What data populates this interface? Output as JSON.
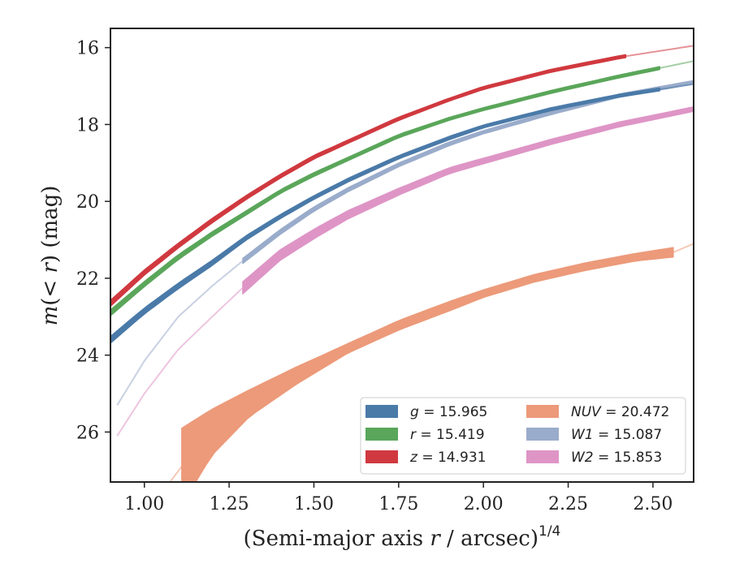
{
  "chart_data": {
    "type": "line",
    "xlabel": "(Semi-major axis r / arcsec)^{1/4}",
    "ylabel": "m(< r) (mag)",
    "xlim": [
      0.9,
      2.62
    ],
    "ylim": [
      27.3,
      15.5
    ],
    "y_inverted": true,
    "xticks": [
      "1.00",
      "1.25",
      "1.50",
      "1.75",
      "2.00",
      "2.25",
      "2.50"
    ],
    "yticks": [
      "16",
      "18",
      "20",
      "22",
      "24",
      "26"
    ],
    "grid": false,
    "legend_position": "lower-right",
    "legend": [
      {
        "label": "g = 15.965",
        "color": "#4a7aa8"
      },
      {
        "label": "NUV = 20.472",
        "color": "#ec9a7a"
      },
      {
        "label": "r = 15.419",
        "color": "#5aa65a"
      },
      {
        "label": "W1 = 15.087",
        "color": "#9aaccb"
      },
      {
        "label": "z = 14.931",
        "color": "#d0393f"
      },
      {
        "label": "W2 = 15.853",
        "color": "#de95c6"
      }
    ],
    "series": [
      {
        "name": "g = 15.965",
        "color": "#4a7aa8",
        "x": [
          0.9,
          1.0,
          1.1,
          1.2,
          1.3,
          1.4,
          1.5,
          1.6,
          1.75,
          1.9,
          2.0,
          2.2,
          2.4,
          2.62
        ],
        "y": [
          23.6,
          22.85,
          22.2,
          21.6,
          20.95,
          20.4,
          19.9,
          19.45,
          18.85,
          18.35,
          18.05,
          17.6,
          17.25,
          16.95
        ],
        "width": [
          0.18,
          0.16,
          0.15,
          0.14,
          0.12,
          0.11,
          0.1,
          0.1,
          0.09,
          0.09,
          0.08,
          0.08,
          0.08,
          0.08
        ],
        "solid_range": [
          0.9,
          2.52
        ]
      },
      {
        "name": "r = 15.419",
        "color": "#5aa65a",
        "x": [
          0.9,
          1.0,
          1.1,
          1.2,
          1.3,
          1.4,
          1.5,
          1.6,
          1.75,
          1.9,
          2.0,
          2.2,
          2.4,
          2.62
        ],
        "y": [
          22.9,
          22.15,
          21.45,
          20.85,
          20.3,
          19.75,
          19.3,
          18.9,
          18.3,
          17.85,
          17.6,
          17.15,
          16.75,
          16.35
        ],
        "width": [
          0.16,
          0.14,
          0.13,
          0.12,
          0.11,
          0.1,
          0.1,
          0.09,
          0.09,
          0.08,
          0.08,
          0.08,
          0.08,
          0.08
        ],
        "solid_range": [
          0.9,
          2.52
        ]
      },
      {
        "name": "z = 14.931",
        "color": "#d0393f",
        "x": [
          0.9,
          1.0,
          1.1,
          1.2,
          1.3,
          1.4,
          1.5,
          1.6,
          1.75,
          1.9,
          2.0,
          2.2,
          2.4,
          2.62
        ],
        "y": [
          22.65,
          21.85,
          21.15,
          20.5,
          19.9,
          19.35,
          18.85,
          18.45,
          17.85,
          17.35,
          17.05,
          16.6,
          16.25,
          15.95
        ],
        "width": [
          0.16,
          0.14,
          0.13,
          0.12,
          0.11,
          0.1,
          0.1,
          0.09,
          0.09,
          0.08,
          0.08,
          0.08,
          0.08,
          0.08
        ],
        "solid_range": [
          0.9,
          2.42
        ]
      },
      {
        "name": "W1 = 15.087",
        "color": "#9aaccb",
        "x": [
          0.92,
          1.0,
          1.1,
          1.2,
          1.29,
          1.4,
          1.5,
          1.6,
          1.75,
          1.9,
          2.0,
          2.2,
          2.4,
          2.62
        ],
        "y": [
          25.3,
          24.15,
          23.0,
          22.2,
          21.55,
          20.8,
          20.2,
          19.7,
          19.05,
          18.5,
          18.2,
          17.7,
          17.25,
          16.9
        ],
        "width": [
          0.1,
          0.1,
          0.1,
          0.1,
          0.14,
          0.13,
          0.12,
          0.11,
          0.1,
          0.1,
          0.09,
          0.09,
          0.09,
          0.09
        ],
        "solid_range": [
          1.29,
          2.62
        ]
      },
      {
        "name": "W2 = 15.853",
        "color": "#de95c6",
        "x": [
          0.92,
          1.0,
          1.1,
          1.2,
          1.29,
          1.4,
          1.5,
          1.6,
          1.75,
          1.9,
          2.0,
          2.2,
          2.4,
          2.62
        ],
        "y": [
          26.1,
          25.0,
          23.85,
          23.0,
          22.25,
          21.4,
          20.85,
          20.35,
          19.75,
          19.2,
          18.95,
          18.45,
          18.0,
          17.6
        ],
        "width": [
          0.1,
          0.1,
          0.1,
          0.1,
          0.32,
          0.28,
          0.25,
          0.22,
          0.18,
          0.16,
          0.15,
          0.14,
          0.13,
          0.12
        ],
        "solid_range": [
          1.29,
          2.62
        ]
      },
      {
        "name": "NUV = 20.472",
        "color": "#ec9a7a",
        "x": [
          0.96,
          1.02,
          1.11,
          1.2,
          1.31,
          1.45,
          1.6,
          1.75,
          1.9,
          2.0,
          2.15,
          2.3,
          2.45,
          2.56,
          2.62
        ],
        "y_upper": [
          28.5,
          27.95,
          25.9,
          25.4,
          24.9,
          24.3,
          23.7,
          23.1,
          22.6,
          22.3,
          21.9,
          21.6,
          21.35,
          21.2,
          21.1
        ],
        "y_lower": [
          28.5,
          27.95,
          27.9,
          26.6,
          25.6,
          24.75,
          23.95,
          23.35,
          22.85,
          22.5,
          22.1,
          21.8,
          21.55,
          21.45,
          21.1
        ],
        "solid_range": [
          1.11,
          2.56
        ]
      }
    ]
  }
}
